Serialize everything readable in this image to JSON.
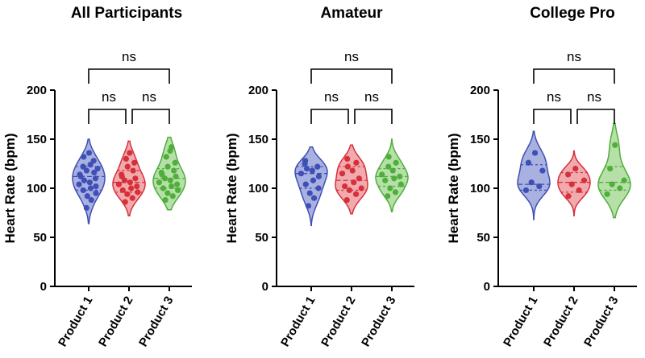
{
  "chart_data": [
    {
      "type": "violin",
      "title": "All Participants",
      "ylabel": "Heart Rate (bpm)",
      "ylim": [
        0,
        200
      ],
      "yticks": [
        0,
        50,
        100,
        150,
        200
      ],
      "categories": [
        "Product 1",
        "Product 2",
        "Product 3"
      ],
      "series": [
        {
          "color": "#3f4fb5",
          "fill": "#9aa3dc",
          "values": [
            80,
            88,
            92,
            95,
            98,
            100,
            102,
            104,
            106,
            108,
            110,
            112,
            114,
            116,
            118,
            120,
            122,
            124,
            128,
            132,
            136
          ],
          "median": 112,
          "q1": 98,
          "q3": 122,
          "min": 64,
          "max": 150
        },
        {
          "color": "#d6303a",
          "fill": "#ef9ca1",
          "values": [
            86,
            90,
            94,
            96,
            98,
            100,
            102,
            104,
            106,
            108,
            110,
            112,
            114,
            118,
            122,
            126,
            130,
            136
          ],
          "median": 106,
          "q1": 96,
          "q3": 118,
          "min": 72,
          "max": 148
        },
        {
          "color": "#4fae3c",
          "fill": "#a9db99",
          "values": [
            88,
            92,
            95,
            98,
            100,
            102,
            104,
            106,
            108,
            110,
            112,
            114,
            116,
            118,
            122,
            126,
            132,
            138,
            142
          ],
          "median": 110,
          "q1": 100,
          "q3": 120,
          "min": 78,
          "max": 152
        }
      ],
      "comparisons": [
        {
          "from": 0,
          "to": 1,
          "label": "ns"
        },
        {
          "from": 1,
          "to": 2,
          "label": "ns"
        },
        {
          "from": 0,
          "to": 2,
          "label": "ns"
        }
      ]
    },
    {
      "type": "violin",
      "title": "Amateur",
      "ylabel": "Heart Rate (bpm)",
      "ylim": [
        0,
        200
      ],
      "yticks": [
        0,
        50,
        100,
        150,
        200
      ],
      "categories": [
        "Product 1",
        "Product 2",
        "Product 3"
      ],
      "series": [
        {
          "color": "#3f4fb5",
          "fill": "#9aa3dc",
          "values": [
            82,
            90,
            95,
            100,
            104,
            108,
            112,
            115,
            118,
            120,
            122,
            125,
            128
          ],
          "median": 115,
          "q1": 100,
          "q3": 122,
          "min": 62,
          "max": 142
        },
        {
          "color": "#d6303a",
          "fill": "#ef9ca1",
          "values": [
            88,
            94,
            98,
            100,
            102,
            106,
            110,
            115,
            118,
            122,
            126,
            130
          ],
          "median": 108,
          "q1": 98,
          "q3": 122,
          "min": 74,
          "max": 144
        },
        {
          "color": "#4fae3c",
          "fill": "#a9db99",
          "values": [
            92,
            96,
            100,
            104,
            108,
            110,
            112,
            114,
            118,
            122,
            126,
            132
          ],
          "median": 112,
          "q1": 102,
          "q3": 120,
          "min": 76,
          "max": 150
        }
      ],
      "comparisons": [
        {
          "from": 0,
          "to": 1,
          "label": "ns"
        },
        {
          "from": 1,
          "to": 2,
          "label": "ns"
        },
        {
          "from": 0,
          "to": 2,
          "label": "ns"
        }
      ]
    },
    {
      "type": "violin",
      "title": "College Pro",
      "ylabel": "Heart Rate (bpm)",
      "ylim": [
        0,
        200
      ],
      "yticks": [
        0,
        50,
        100,
        150,
        200
      ],
      "categories": [
        "Product 1",
        "Product 2",
        "Product 3"
      ],
      "series": [
        {
          "color": "#3f4fb5",
          "fill": "#9aa3dc",
          "values": [
            98,
            102,
            106,
            118,
            126,
            136
          ],
          "median": 104,
          "q1": 98,
          "q3": 124,
          "min": 68,
          "max": 158
        },
        {
          "color": "#d6303a",
          "fill": "#ef9ca1",
          "values": [
            92,
            98,
            104,
            108,
            114,
            120
          ],
          "median": 106,
          "q1": 96,
          "q3": 116,
          "min": 72,
          "max": 138
        },
        {
          "color": "#4fae3c",
          "fill": "#a9db99",
          "values": [
            94,
            100,
            104,
            108,
            120,
            144
          ],
          "median": 106,
          "q1": 98,
          "q3": 122,
          "min": 70,
          "max": 166
        }
      ],
      "comparisons": [
        {
          "from": 0,
          "to": 1,
          "label": "ns"
        },
        {
          "from": 1,
          "to": 2,
          "label": "ns"
        },
        {
          "from": 0,
          "to": 2,
          "label": "ns"
        }
      ]
    }
  ]
}
